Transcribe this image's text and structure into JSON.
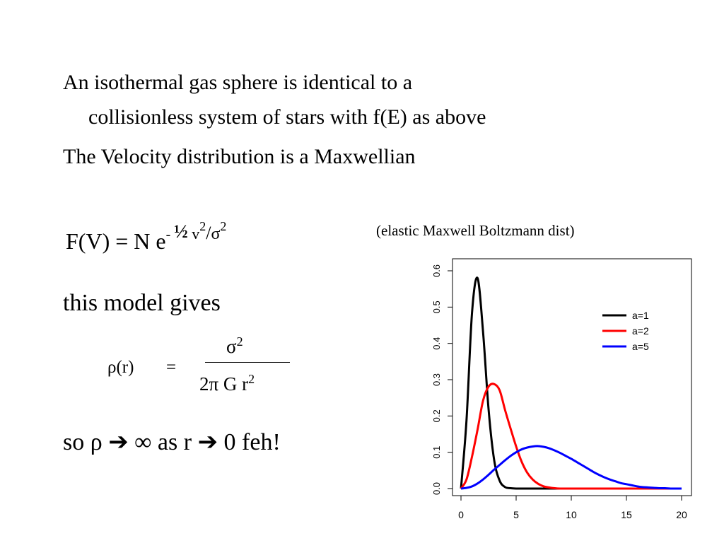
{
  "slide": {
    "bullet1_line1": "An isothermal gas sphere is identical to a",
    "bullet1_line2": "collisionless system of stars with f(E) as above",
    "bullet2": "The Velocity distribution is a Maxwellian",
    "equation_lhs": "F(V) =  N e",
    "equation_exp_minus": "- ",
    "equation_exp_half": "½",
    "equation_exp_v": " v",
    "equation_exp_sq": "2",
    "equation_exp_slash": "/",
    "equation_exp_sigma": "σ",
    "equation_exp_sq2": "2",
    "equation_note": "(elastic Maxwell Boltzmann dist)",
    "model_gives": "this model gives",
    "rho_lhs": "ρ(r)",
    "rho_eq": "=",
    "rho_num": "σ",
    "rho_num_exp": "2",
    "rho_den": "2π G r",
    "rho_den_exp": "2",
    "conclusion": "so ρ ➔ ∞  as r ➔ 0   feh!"
  },
  "chart_data": {
    "type": "line",
    "x": [
      0,
      0.5,
      1,
      1.5,
      2,
      2.5,
      3,
      3.5,
      4,
      4.5,
      5,
      5.5,
      6,
      6.5,
      7,
      7.5,
      8,
      8.5,
      9,
      9.5,
      10,
      10.5,
      11,
      11.5,
      12,
      12.5,
      13,
      13.5,
      14,
      14.5,
      15,
      15.5,
      16,
      16.5,
      17,
      17.5,
      18,
      18.5,
      19,
      19.5,
      20
    ],
    "series": [
      {
        "name": "a=1",
        "color": "#000000",
        "values": [
          0,
          0.188,
          0.484,
          0.58,
          0.432,
          0.219,
          0.08,
          0.022,
          0.004,
          0.001,
          0,
          0,
          0,
          0,
          0,
          0,
          0,
          0,
          0,
          0,
          0,
          0,
          0,
          0,
          0,
          0,
          0,
          0,
          0,
          0,
          0,
          0,
          0,
          0,
          0,
          0,
          0,
          0,
          0,
          0,
          0
        ]
      },
      {
        "name": "a=2",
        "color": "#ff0000",
        "values": [
          0,
          0.025,
          0.088,
          0.162,
          0.242,
          0.281,
          0.288,
          0.271,
          0.216,
          0.165,
          0.116,
          0.074,
          0.044,
          0.025,
          0.013,
          0.006,
          0.003,
          0.001,
          0,
          0,
          0,
          0,
          0,
          0,
          0,
          0,
          0,
          0,
          0,
          0,
          0,
          0,
          0,
          0,
          0,
          0,
          0,
          0,
          0,
          0,
          0
        ]
      },
      {
        "name": "a=5",
        "color": "#0000ff",
        "values": [
          0,
          0.002,
          0.006,
          0.014,
          0.025,
          0.038,
          0.052,
          0.065,
          0.078,
          0.09,
          0.1,
          0.108,
          0.113,
          0.116,
          0.117,
          0.115,
          0.111,
          0.105,
          0.098,
          0.09,
          0.082,
          0.073,
          0.064,
          0.055,
          0.046,
          0.038,
          0.031,
          0.025,
          0.02,
          0.015,
          0.012,
          0.009,
          0.006,
          0.004,
          0.003,
          0.002,
          0.001,
          0.001,
          0,
          0,
          0
        ]
      }
    ],
    "xticks": [
      "0",
      "5",
      "10",
      "15",
      "20"
    ],
    "yticks": [
      "0.0",
      "0.1",
      "0.2",
      "0.3",
      "0.4",
      "0.5",
      "0.6"
    ],
    "xlim": [
      0,
      20
    ],
    "ylim": [
      0,
      0.6
    ],
    "legend_position": "top-right",
    "grid": false,
    "title": "",
    "xlabel": "",
    "ylabel": ""
  }
}
